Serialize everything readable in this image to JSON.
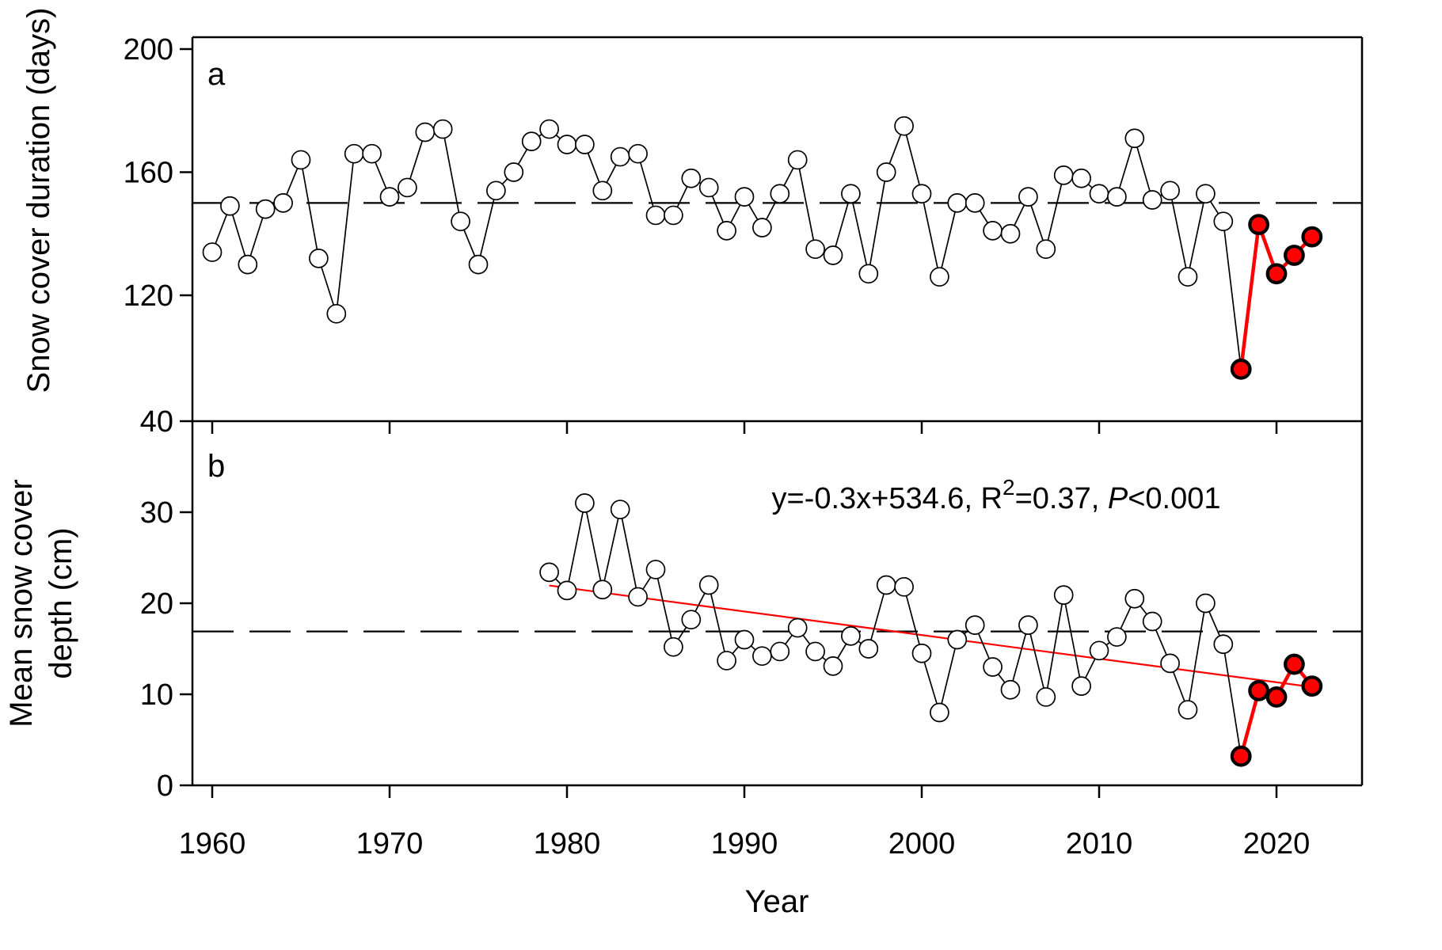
{
  "figure": {
    "xlabel": "Year",
    "panel_a": {
      "label": "a",
      "ylabel": "Snow cover duration (days)"
    },
    "panel_b": {
      "label": "b",
      "ylabel_line1": "Mean snow cover",
      "ylabel_line2": "depth (cm)"
    },
    "colors": {
      "series_black": "#000000",
      "highlight_red": "#FF0000",
      "background": "#FFFFFF"
    }
  },
  "chart_data": [
    {
      "type": "line",
      "panel": "a",
      "ylabel": "Snow cover duration (days)",
      "xlabel": "Year",
      "x_ticks": [
        1960,
        1970,
        1980,
        1990,
        2000,
        2010,
        2020
      ],
      "y_ticks": [
        200,
        160,
        120
      ],
      "ylim": [
        79,
        204
      ],
      "xlim": [
        1958.9,
        2024.6
      ],
      "grid": false,
      "mean_line": 150,
      "legend": "none",
      "series": [
        {
          "name": "duration-1960-2017",
          "marker": "open-circle",
          "color": "#000000",
          "years": [
            1960,
            1961,
            1962,
            1963,
            1964,
            1965,
            1966,
            1967,
            1968,
            1969,
            1970,
            1971,
            1972,
            1973,
            1974,
            1975,
            1976,
            1977,
            1978,
            1979,
            1980,
            1981,
            1982,
            1983,
            1984,
            1985,
            1986,
            1987,
            1988,
            1989,
            1990,
            1991,
            1992,
            1993,
            1994,
            1995,
            1996,
            1997,
            1998,
            1999,
            2000,
            2001,
            2002,
            2003,
            2004,
            2005,
            2006,
            2007,
            2008,
            2009,
            2010,
            2011,
            2012,
            2013,
            2014,
            2015,
            2016,
            2017
          ],
          "values": [
            134,
            149,
            130,
            148,
            150,
            164,
            132,
            114,
            166,
            166,
            152,
            155,
            173,
            174,
            144,
            130,
            154,
            160,
            170,
            174,
            169,
            169,
            154,
            165,
            166,
            146,
            146,
            158,
            155,
            141,
            152,
            142,
            153,
            164,
            135,
            133,
            153,
            127,
            160,
            175,
            153,
            126,
            150,
            150,
            141,
            140,
            152,
            135,
            159,
            158,
            153,
            152,
            171,
            151,
            154,
            126,
            153,
            144
          ]
        },
        {
          "name": "duration-2018-2022",
          "marker": "filled-circle",
          "color": "#FF0000",
          "years": [
            2018,
            2019,
            2020,
            2021,
            2022
          ],
          "values": [
            96,
            143,
            127,
            133,
            139
          ]
        }
      ]
    },
    {
      "type": "line",
      "panel": "b",
      "ylabel": "Mean snow cover depth (cm)",
      "xlabel": "Year",
      "x_ticks": [
        1960,
        1970,
        1980,
        1990,
        2000,
        2010,
        2020
      ],
      "y_ticks": [
        40,
        30,
        20,
        10,
        0
      ],
      "ylim": [
        0,
        40
      ],
      "xlim": [
        1958.9,
        2024.6
      ],
      "grid": false,
      "mean_line": 16.9,
      "legend": "none",
      "trend_line": {
        "color": "#FF0000",
        "x1": 1979,
        "y1": 21.95,
        "x2": 2022,
        "y2": 10.8
      },
      "equation": {
        "full_text": "y=-0.3x+534.6, R2=0.37, P<0.001",
        "before_sup": "y=-0.3x+534.6, R",
        "sup": "2",
        "mid": "=0.37, ",
        "italic": "P",
        "after": "<0.001"
      },
      "series": [
        {
          "name": "depth-1979-2017",
          "marker": "open-circle",
          "color": "#000000",
          "years": [
            1979,
            1980,
            1981,
            1982,
            1983,
            1984,
            1985,
            1986,
            1987,
            1988,
            1989,
            1990,
            1991,
            1992,
            1993,
            1994,
            1995,
            1996,
            1997,
            1998,
            1999,
            2000,
            2001,
            2002,
            2003,
            2004,
            2005,
            2006,
            2007,
            2008,
            2009,
            2010,
            2011,
            2012,
            2013,
            2014,
            2015,
            2016,
            2017
          ],
          "values": [
            23.4,
            21.4,
            31.0,
            21.5,
            30.3,
            20.7,
            23.7,
            15.2,
            18.2,
            22.0,
            13.7,
            16.0,
            14.2,
            14.7,
            17.3,
            14.7,
            13.1,
            16.4,
            15.0,
            22.0,
            21.8,
            14.5,
            8.0,
            16.0,
            17.6,
            13.0,
            10.5,
            17.6,
            9.7,
            20.9,
            10.9,
            14.8,
            16.3,
            20.5,
            18.0,
            13.4,
            8.3,
            20.0,
            15.5
          ]
        },
        {
          "name": "depth-2018-2022",
          "marker": "filled-circle",
          "color": "#FF0000",
          "years": [
            2018,
            2019,
            2020,
            2021,
            2022
          ],
          "values": [
            3.2,
            10.4,
            9.7,
            13.3,
            10.9
          ]
        }
      ]
    }
  ]
}
